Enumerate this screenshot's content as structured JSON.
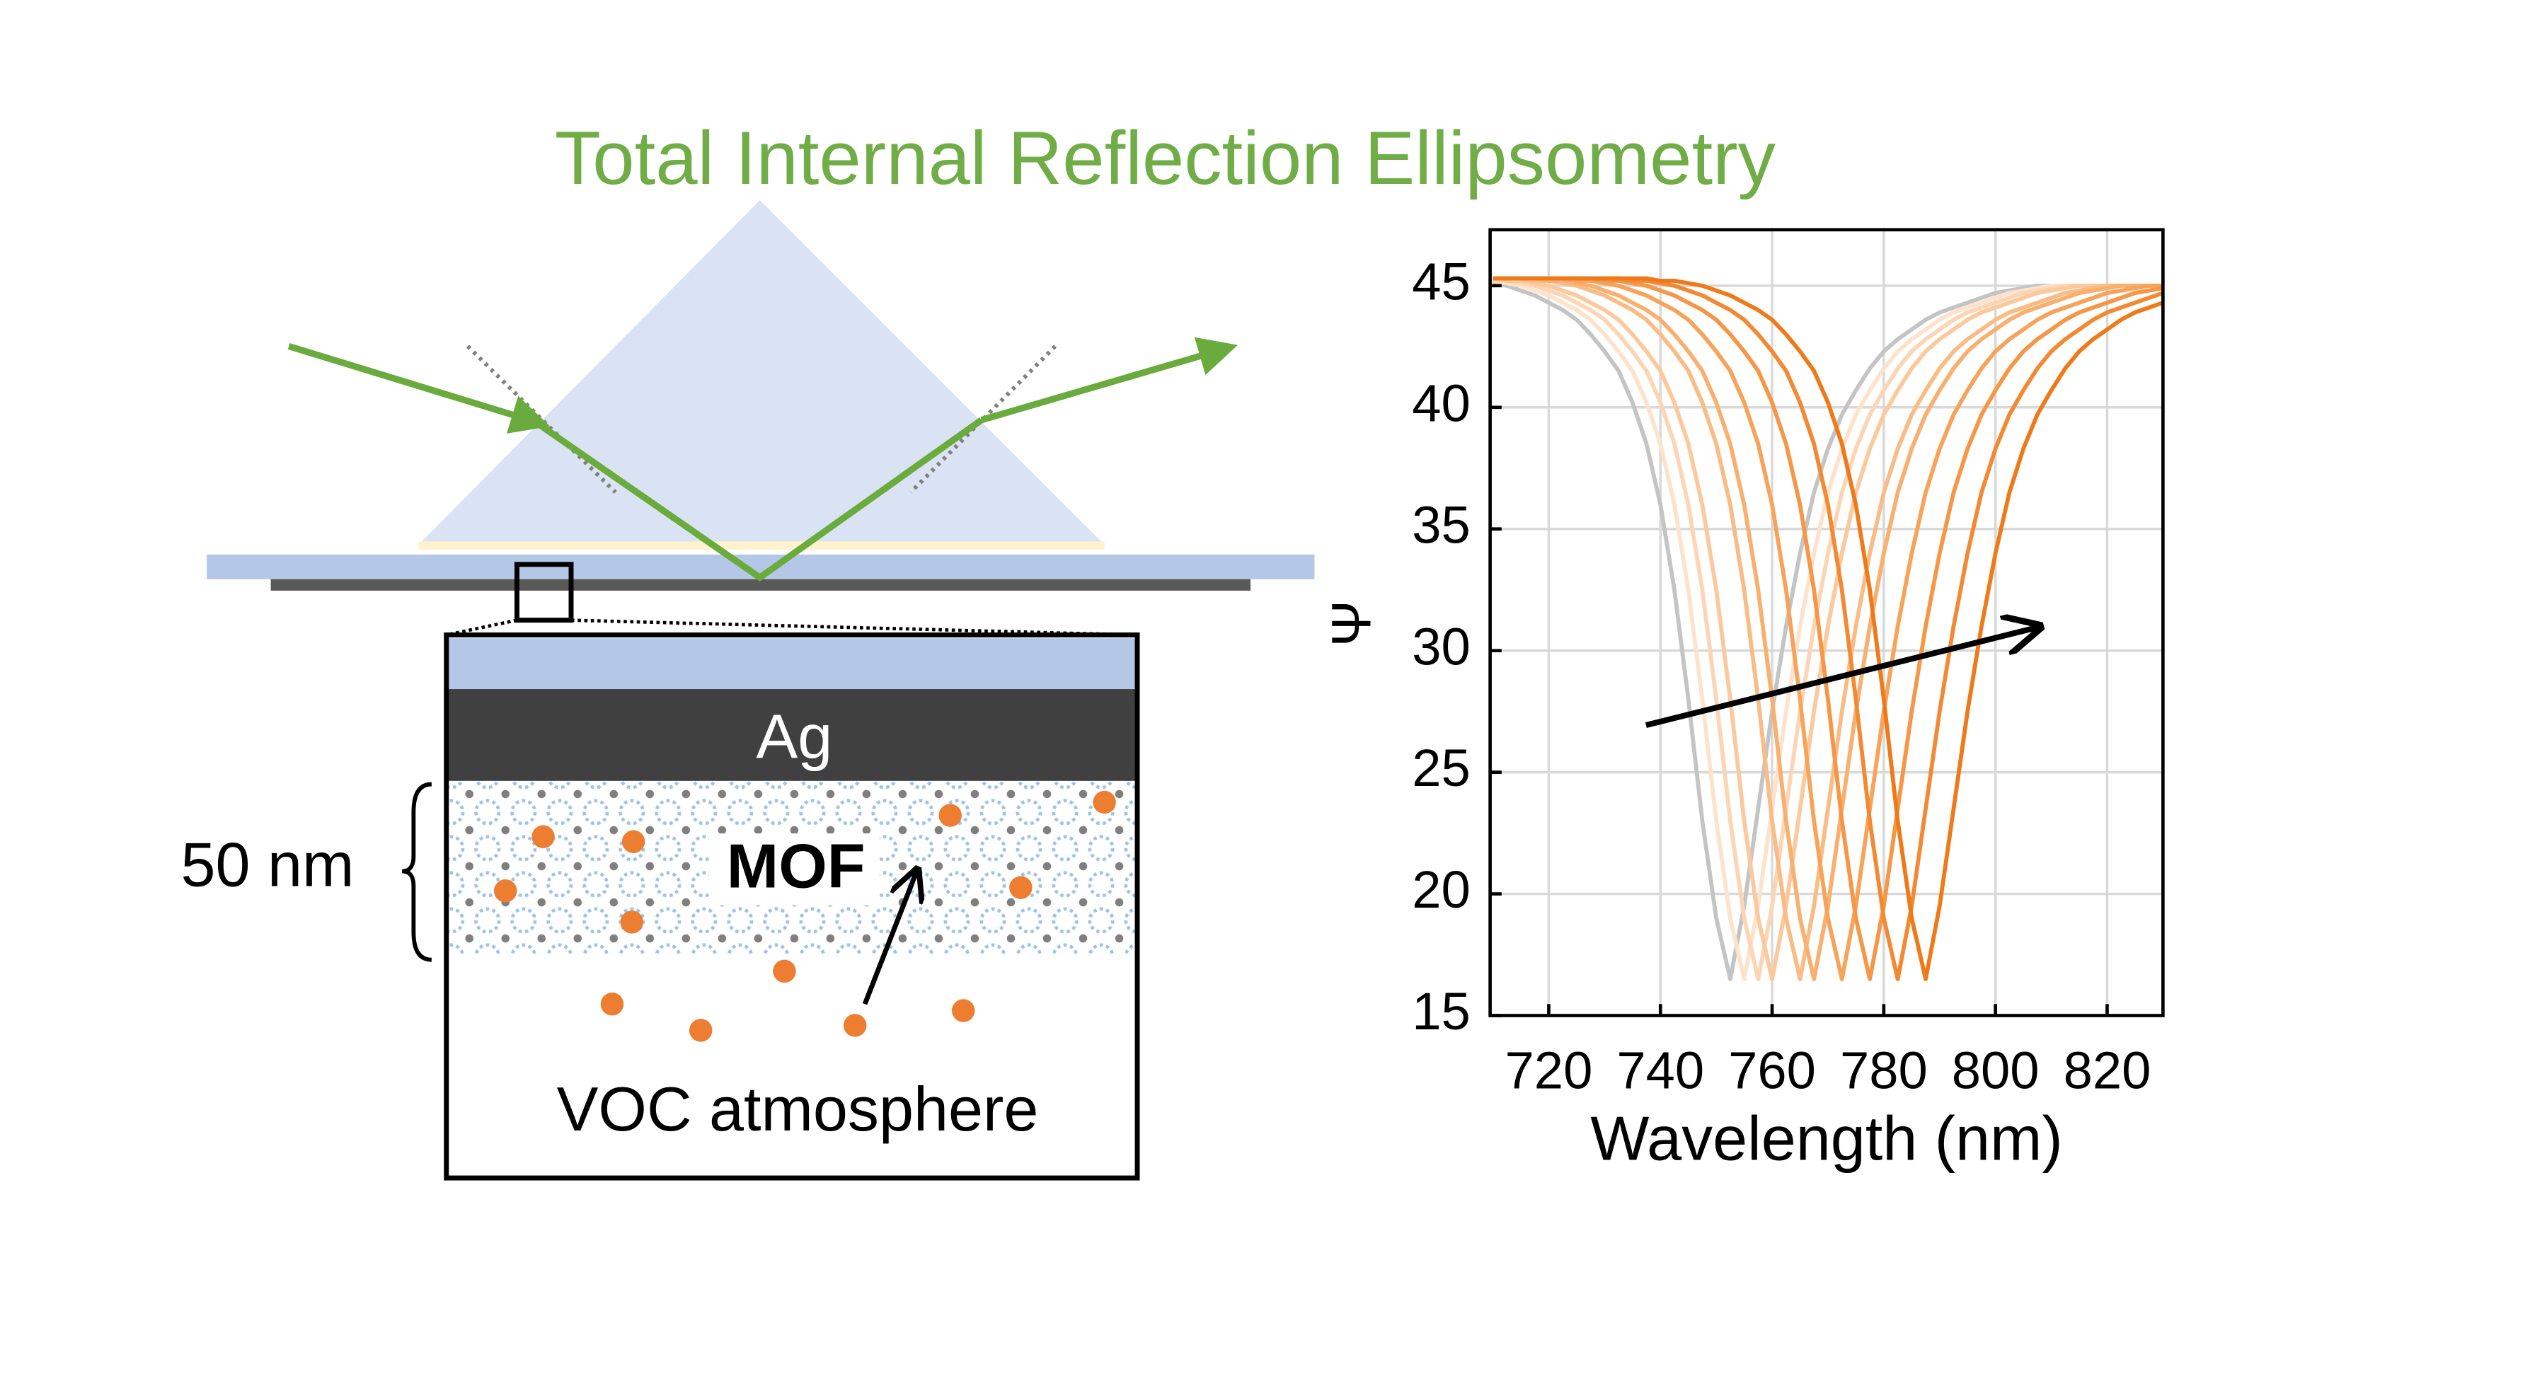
{
  "title": "Total Internal Reflection Ellipsometry",
  "diagram": {
    "layer_label": "Ag",
    "film_label": "MOF",
    "thickness_label": "50 nm",
    "atmosphere_label": "VOC atmosphere"
  },
  "chart_data": {
    "type": "line",
    "xlabel": "Wavelength (nm)",
    "ylabel": "Ψ",
    "xlim": [
      709.5,
      830
    ],
    "ylim": [
      15,
      47.3
    ],
    "xticks": [
      720,
      740,
      760,
      780,
      800,
      820
    ],
    "yticks": [
      15,
      20,
      25,
      30,
      35,
      40,
      45
    ],
    "grid": true,
    "x": [
      710,
      712.5,
      715,
      717.5,
      720,
      722.5,
      725,
      727.5,
      730,
      732.5,
      735,
      737.5,
      740,
      742.5,
      745,
      747.5,
      750,
      752.5,
      755,
      757.5,
      760,
      762.5,
      765,
      767.5,
      770,
      772.5,
      775,
      777.5,
      780,
      782.5,
      785,
      787.5,
      790,
      792.5,
      795,
      797.5,
      800,
      802.5,
      805,
      807.5,
      810,
      812.5,
      815,
      817.5,
      820,
      822.5,
      825,
      827.5,
      830
    ],
    "series": [
      {
        "color": "#c4c4c4",
        "values": [
          45.1,
          45.0,
          44.8,
          44.6,
          44.3,
          44.0,
          43.6,
          43.0,
          42.3,
          41.5,
          40.2,
          38.5,
          36.0,
          32.5,
          28.0,
          23.0,
          19.0,
          16.5,
          19.5,
          23.5,
          27.5,
          31.0,
          34.0,
          36.5,
          38.3,
          39.7,
          40.7,
          41.6,
          42.3,
          42.8,
          43.2,
          43.6,
          43.9,
          44.1,
          44.3,
          44.5,
          44.7,
          44.8,
          44.9,
          45.0,
          45.0,
          45.0,
          45.0,
          45.0,
          45.0,
          45.0,
          45.0,
          45.0,
          45.0
        ]
      },
      {
        "color": "#fde3cc",
        "values": [
          45.2,
          45.1,
          45.0,
          44.8,
          44.6,
          44.3,
          44.0,
          43.6,
          43.0,
          42.3,
          41.5,
          40.2,
          38.5,
          36.0,
          32.5,
          28.0,
          23.0,
          19.0,
          16.5,
          19.5,
          23.5,
          27.5,
          31.0,
          34.0,
          36.5,
          38.3,
          39.7,
          40.7,
          41.6,
          42.3,
          42.8,
          43.2,
          43.6,
          43.9,
          44.1,
          44.3,
          44.5,
          44.7,
          44.8,
          44.9,
          45.0,
          45.0,
          45.0,
          45.0,
          45.0,
          45.0,
          45.0,
          45.0,
          45.0
        ]
      },
      {
        "color": "#fcd6b4",
        "values": [
          45.2,
          45.2,
          45.1,
          45.0,
          44.8,
          44.6,
          44.3,
          44.0,
          43.6,
          43.0,
          42.3,
          41.5,
          40.2,
          38.5,
          36.0,
          32.5,
          28.0,
          23.0,
          19.0,
          16.5,
          19.5,
          23.5,
          27.5,
          31.0,
          34.0,
          36.5,
          38.3,
          39.7,
          40.7,
          41.6,
          42.3,
          42.8,
          43.2,
          43.6,
          43.9,
          44.1,
          44.3,
          44.5,
          44.7,
          44.8,
          44.9,
          45.0,
          45.0,
          45.0,
          45.0,
          45.0,
          45.0,
          45.0,
          45.0
        ]
      },
      {
        "color": "#fbc99c",
        "values": [
          45.3,
          45.2,
          45.2,
          45.1,
          45.0,
          44.8,
          44.6,
          44.3,
          44.0,
          43.6,
          43.0,
          42.3,
          41.5,
          40.2,
          38.5,
          36.0,
          32.5,
          28.0,
          23.0,
          19.0,
          16.5,
          19.5,
          23.5,
          27.5,
          31.0,
          34.0,
          36.5,
          38.3,
          39.7,
          40.7,
          41.6,
          42.3,
          42.8,
          43.2,
          43.6,
          43.9,
          44.1,
          44.3,
          44.5,
          44.7,
          44.8,
          44.9,
          45.0,
          45.0,
          45.0,
          45.0,
          45.0,
          45.0,
          45.0
        ]
      },
      {
        "color": "#fabc85",
        "values": [
          45.3,
          45.3,
          45.3,
          45.2,
          45.2,
          45.1,
          45.0,
          44.8,
          44.6,
          44.3,
          44.0,
          43.6,
          43.0,
          42.3,
          41.5,
          40.2,
          38.5,
          36.0,
          32.5,
          28.0,
          23.0,
          19.0,
          16.5,
          19.5,
          23.5,
          27.5,
          31.0,
          34.0,
          36.5,
          38.3,
          39.7,
          40.7,
          41.6,
          42.3,
          42.8,
          43.2,
          43.6,
          43.9,
          44.1,
          44.3,
          44.5,
          44.7,
          44.8,
          44.9,
          45.0,
          45.0,
          45.0,
          45.0,
          45.0
        ]
      },
      {
        "color": "#f9b06f",
        "values": [
          45.3,
          45.3,
          45.3,
          45.3,
          45.2,
          45.2,
          45.1,
          45.0,
          44.8,
          44.6,
          44.3,
          44.0,
          43.6,
          43.0,
          42.3,
          41.5,
          40.2,
          38.5,
          36.0,
          32.5,
          28.0,
          23.0,
          19.0,
          16.5,
          19.5,
          23.5,
          27.5,
          31.0,
          34.0,
          36.5,
          38.3,
          39.7,
          40.7,
          41.6,
          42.3,
          42.8,
          43.2,
          43.6,
          43.9,
          44.1,
          44.3,
          44.5,
          44.7,
          44.8,
          44.9,
          45.0,
          45.0,
          45.0,
          45.0
        ]
      },
      {
        "color": "#f7a35a",
        "values": [
          45.3,
          45.3,
          45.3,
          45.3,
          45.3,
          45.3,
          45.2,
          45.2,
          45.1,
          45.0,
          44.8,
          44.6,
          44.3,
          44.0,
          43.6,
          43.0,
          42.3,
          41.5,
          40.2,
          38.5,
          36.0,
          32.5,
          28.0,
          23.0,
          19.0,
          16.5,
          19.5,
          23.5,
          27.5,
          31.0,
          34.0,
          36.5,
          38.3,
          39.7,
          40.7,
          41.6,
          42.3,
          42.8,
          43.2,
          43.6,
          43.9,
          44.1,
          44.3,
          44.5,
          44.7,
          44.8,
          44.9,
          45.0,
          45.0
        ]
      },
      {
        "color": "#f59746",
        "values": [
          45.3,
          45.3,
          45.3,
          45.3,
          45.3,
          45.3,
          45.3,
          45.3,
          45.2,
          45.2,
          45.1,
          45.0,
          44.8,
          44.6,
          44.3,
          44.0,
          43.6,
          43.0,
          42.3,
          41.5,
          40.2,
          38.5,
          36.0,
          32.5,
          28.0,
          23.0,
          19.0,
          16.5,
          19.5,
          23.5,
          27.5,
          31.0,
          34.0,
          36.5,
          38.3,
          39.7,
          40.7,
          41.6,
          42.3,
          42.8,
          43.2,
          43.6,
          43.9,
          44.1,
          44.3,
          44.5,
          44.7,
          44.8,
          44.9
        ]
      },
      {
        "color": "#f38a33",
        "values": [
          45.3,
          45.3,
          45.3,
          45.3,
          45.3,
          45.3,
          45.3,
          45.3,
          45.3,
          45.3,
          45.2,
          45.2,
          45.1,
          45.0,
          44.8,
          44.6,
          44.3,
          44.0,
          43.6,
          43.0,
          42.3,
          41.5,
          40.2,
          38.5,
          36.0,
          32.5,
          28.0,
          23.0,
          19.0,
          16.5,
          19.5,
          23.5,
          27.5,
          31.0,
          34.0,
          36.5,
          38.3,
          39.7,
          40.7,
          41.6,
          42.3,
          42.8,
          43.2,
          43.6,
          43.9,
          44.1,
          44.3,
          44.5,
          44.7
        ]
      },
      {
        "color": "#ef7a1a",
        "values": [
          45.3,
          45.3,
          45.3,
          45.3,
          45.3,
          45.3,
          45.3,
          45.3,
          45.3,
          45.3,
          45.3,
          45.3,
          45.2,
          45.2,
          45.1,
          45.0,
          44.8,
          44.6,
          44.3,
          44.0,
          43.6,
          43.0,
          42.3,
          41.5,
          40.2,
          38.5,
          36.0,
          32.5,
          28.0,
          23.0,
          19.0,
          16.5,
          19.5,
          23.5,
          27.5,
          31.0,
          34.0,
          36.5,
          38.3,
          39.7,
          40.7,
          41.6,
          42.3,
          42.8,
          43.2,
          43.6,
          43.9,
          44.1,
          44.3
        ]
      }
    ]
  }
}
